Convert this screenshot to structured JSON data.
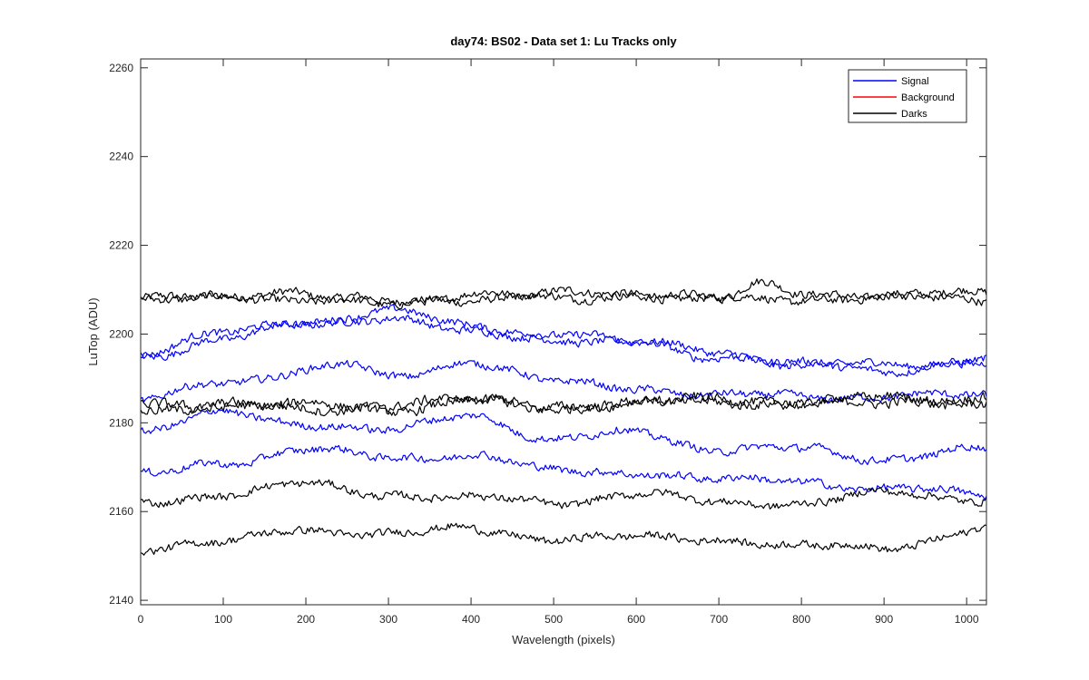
{
  "chart_data": {
    "type": "line",
    "title": "day74: BS02 - Data set 1: Lu Tracks only",
    "xlabel": "Wavelength (pixels)",
    "ylabel": "LuTop (ADU)",
    "xlim": [
      0,
      1024
    ],
    "ylim": [
      2139,
      2262
    ],
    "xticks": [
      0,
      100,
      200,
      300,
      400,
      500,
      600,
      700,
      800,
      900,
      1000
    ],
    "yticks": [
      2140,
      2160,
      2180,
      2200,
      2220,
      2240,
      2260
    ],
    "legend": {
      "position": "top-right",
      "entries": [
        {
          "label": "Signal",
          "color": "#0000ff"
        },
        {
          "label": "Background",
          "color": "#ff0000"
        },
        {
          "label": "Darks",
          "color": "#000000"
        }
      ]
    },
    "series": [
      {
        "name": "Darks",
        "color": "#000000",
        "noise": 1.3,
        "x": [
          0,
          100,
          170,
          250,
          300,
          400,
          500,
          600,
          700,
          750,
          800,
          900,
          1024
        ],
        "y": [
          2208,
          2208,
          2210,
          2208,
          2207,
          2208,
          2209,
          2209,
          2208,
          2211,
          2209,
          2209,
          2209
        ]
      },
      {
        "name": "Darks",
        "color": "#000000",
        "noise": 1.3,
        "x": [
          0,
          100,
          200,
          300,
          400,
          500,
          600,
          700,
          800,
          900,
          1024
        ],
        "y": [
          2207,
          2209,
          2207,
          2207,
          2209,
          2208,
          2209,
          2208,
          2208,
          2208,
          2208
        ]
      },
      {
        "name": "Signal",
        "color": "#0000ff",
        "noise": 1.2,
        "x": [
          0,
          100,
          200,
          300,
          400,
          500,
          600,
          700,
          800,
          900,
          1024
        ],
        "y": [
          2195,
          2199,
          2202,
          2204,
          2200,
          2199,
          2198,
          2196,
          2193,
          2193,
          2194
        ]
      },
      {
        "name": "Signal",
        "color": "#0000ff",
        "noise": 1.2,
        "x": [
          0,
          100,
          200,
          300,
          400,
          500,
          600,
          700,
          800,
          900,
          1024
        ],
        "y": [
          2196,
          2200,
          2203,
          2205,
          2202,
          2200,
          2198,
          2195,
          2193,
          2192,
          2194
        ]
      },
      {
        "name": "Signal",
        "color": "#0000ff",
        "noise": 1.2,
        "x": [
          0,
          100,
          200,
          250,
          300,
          400,
          500,
          600,
          700,
          800,
          900,
          1024
        ],
        "y": [
          2185,
          2189,
          2192,
          2193,
          2190,
          2194,
          2189,
          2188,
          2186,
          2186,
          2186,
          2186
        ]
      },
      {
        "name": "Darks",
        "color": "#000000",
        "noise": 1.5,
        "x": [
          0,
          100,
          200,
          300,
          400,
          500,
          600,
          700,
          800,
          900,
          1024
        ],
        "y": [
          2184,
          2184,
          2184,
          2183,
          2185,
          2183,
          2185,
          2184,
          2185,
          2184,
          2186
        ]
      },
      {
        "name": "Darks",
        "color": "#000000",
        "noise": 1.5,
        "x": [
          0,
          100,
          200,
          300,
          400,
          500,
          600,
          700,
          800,
          900,
          1024
        ],
        "y": [
          2183,
          2184,
          2183,
          2184,
          2185,
          2184,
          2184,
          2186,
          2184,
          2186,
          2184
        ]
      },
      {
        "name": "Signal",
        "color": "#0000ff",
        "noise": 1.2,
        "x": [
          0,
          100,
          200,
          300,
          400,
          500,
          600,
          700,
          800,
          900,
          1024
        ],
        "y": [
          2178,
          2182,
          2180,
          2178,
          2182,
          2176,
          2178,
          2174,
          2174,
          2172,
          2174
        ]
      },
      {
        "name": "Signal",
        "color": "#0000ff",
        "noise": 1.2,
        "x": [
          0,
          100,
          200,
          300,
          400,
          500,
          600,
          700,
          800,
          900,
          1024
        ],
        "y": [
          2168,
          2171,
          2174,
          2172,
          2173,
          2169,
          2169,
          2167,
          2167,
          2165,
          2164
        ]
      },
      {
        "name": "Darks",
        "color": "#000000",
        "noise": 1.2,
        "x": [
          0,
          100,
          200,
          300,
          400,
          500,
          600,
          700,
          800,
          900,
          1024
        ],
        "y": [
          2162,
          2164,
          2166,
          2164,
          2163,
          2162,
          2164,
          2162,
          2162,
          2164,
          2163
        ]
      },
      {
        "name": "Darks",
        "color": "#000000",
        "noise": 1.2,
        "x": [
          0,
          100,
          200,
          300,
          400,
          500,
          600,
          700,
          800,
          900,
          1024
        ],
        "y": [
          2152,
          2153,
          2156,
          2155,
          2156,
          2154,
          2154,
          2154,
          2152,
          2152,
          2156
        ]
      }
    ]
  }
}
